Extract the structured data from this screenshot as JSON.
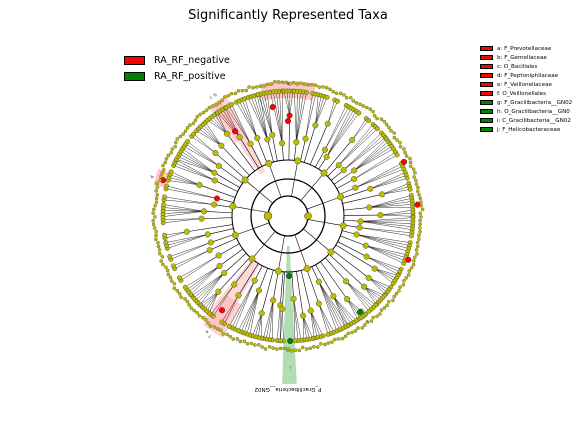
{
  "title": "Significantly Represented Taxa",
  "legend": [
    {
      "label": "RA_RF_negative",
      "color": "#ff0000"
    },
    {
      "label": "RA_RF_positive",
      "color": "#008000"
    }
  ],
  "taxa_key": [
    {
      "label": "a: F_Prevotellaceae",
      "color": "#ff0000"
    },
    {
      "label": "b: F_Gemellaceae",
      "color": "#ff0000"
    },
    {
      "label": "c: O_Bacillales",
      "color": "#ff0000"
    },
    {
      "label": "d: F_Peptoniphilaceae",
      "color": "#ff0000"
    },
    {
      "label": "e: F_Veillonellaceae",
      "color": "#ff0000"
    },
    {
      "label": "f: O_Veillonellales",
      "color": "#ff0000"
    },
    {
      "label": "g: F_Gracilibacteria__GN02",
      "color": "#008000"
    },
    {
      "label": "h: O_Gracilibacteria__GN0",
      "color": "#008000"
    },
    {
      "label": "i: C_Gracilibacteria__GN02",
      "color": "#008000"
    },
    {
      "label": "j: F_Helicobacteraceae",
      "color": "#008000"
    }
  ],
  "clade_labels": {
    "a": "a",
    "b": "b",
    "c": "c",
    "d": "d",
    "e": "e",
    "f": "f",
    "i": "i",
    "j": "j",
    "phylum": "P_Gracilibacteria__GN02"
  },
  "colors": {
    "node": "#bdbd00",
    "negative": "#ff0000",
    "positive": "#008000",
    "neg_shade": "#ffb3b3",
    "pos_shade": "#7fc47f"
  }
}
